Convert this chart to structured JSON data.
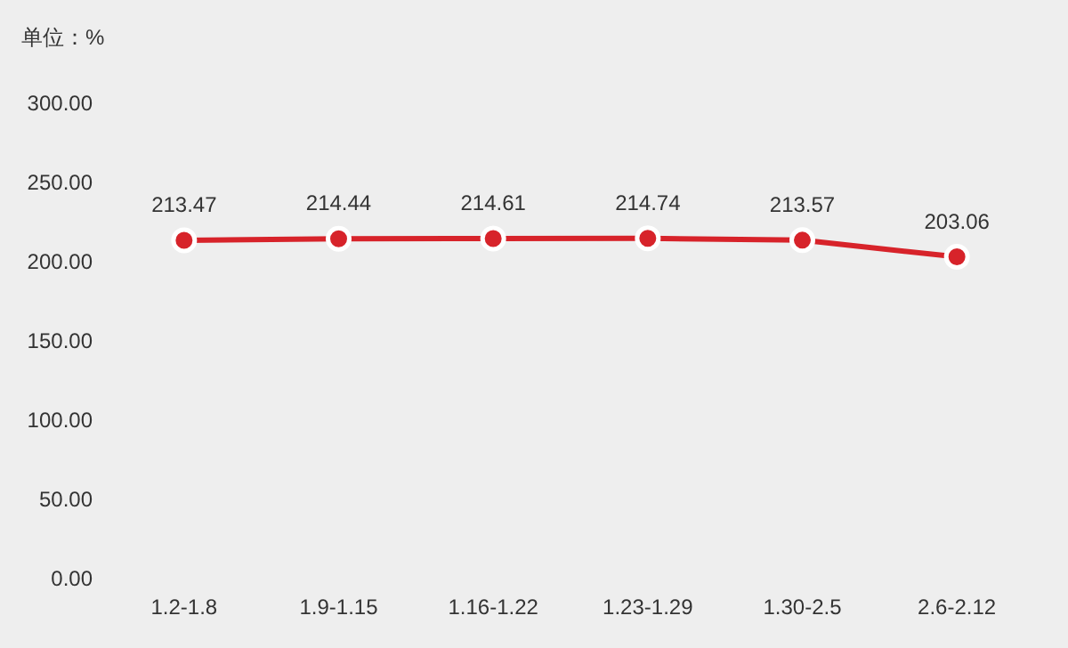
{
  "chart_data": {
    "type": "line",
    "ylabel": "单位：%",
    "categories": [
      "1.2-1.8",
      "1.9-1.15",
      "1.16-1.22",
      "1.23-1.29",
      "1.30-2.5",
      "2.6-2.12"
    ],
    "series": [
      {
        "color": "#d7232a",
        "values": [
          213.47,
          214.44,
          214.61,
          214.74,
          213.57,
          203.06
        ]
      }
    ],
    "ylim": [
      0,
      300
    ],
    "yticks": [
      {
        "value": 0,
        "label": "0.00"
      },
      {
        "value": 50,
        "label": "50.00"
      },
      {
        "value": 100,
        "label": "100.00"
      },
      {
        "value": 150,
        "label": "150.00"
      },
      {
        "value": 200,
        "label": "200.00"
      },
      {
        "value": 250,
        "label": "250.00"
      },
      {
        "value": 300,
        "label": "300.00"
      }
    ],
    "data_labels": true,
    "marker": "circle"
  }
}
